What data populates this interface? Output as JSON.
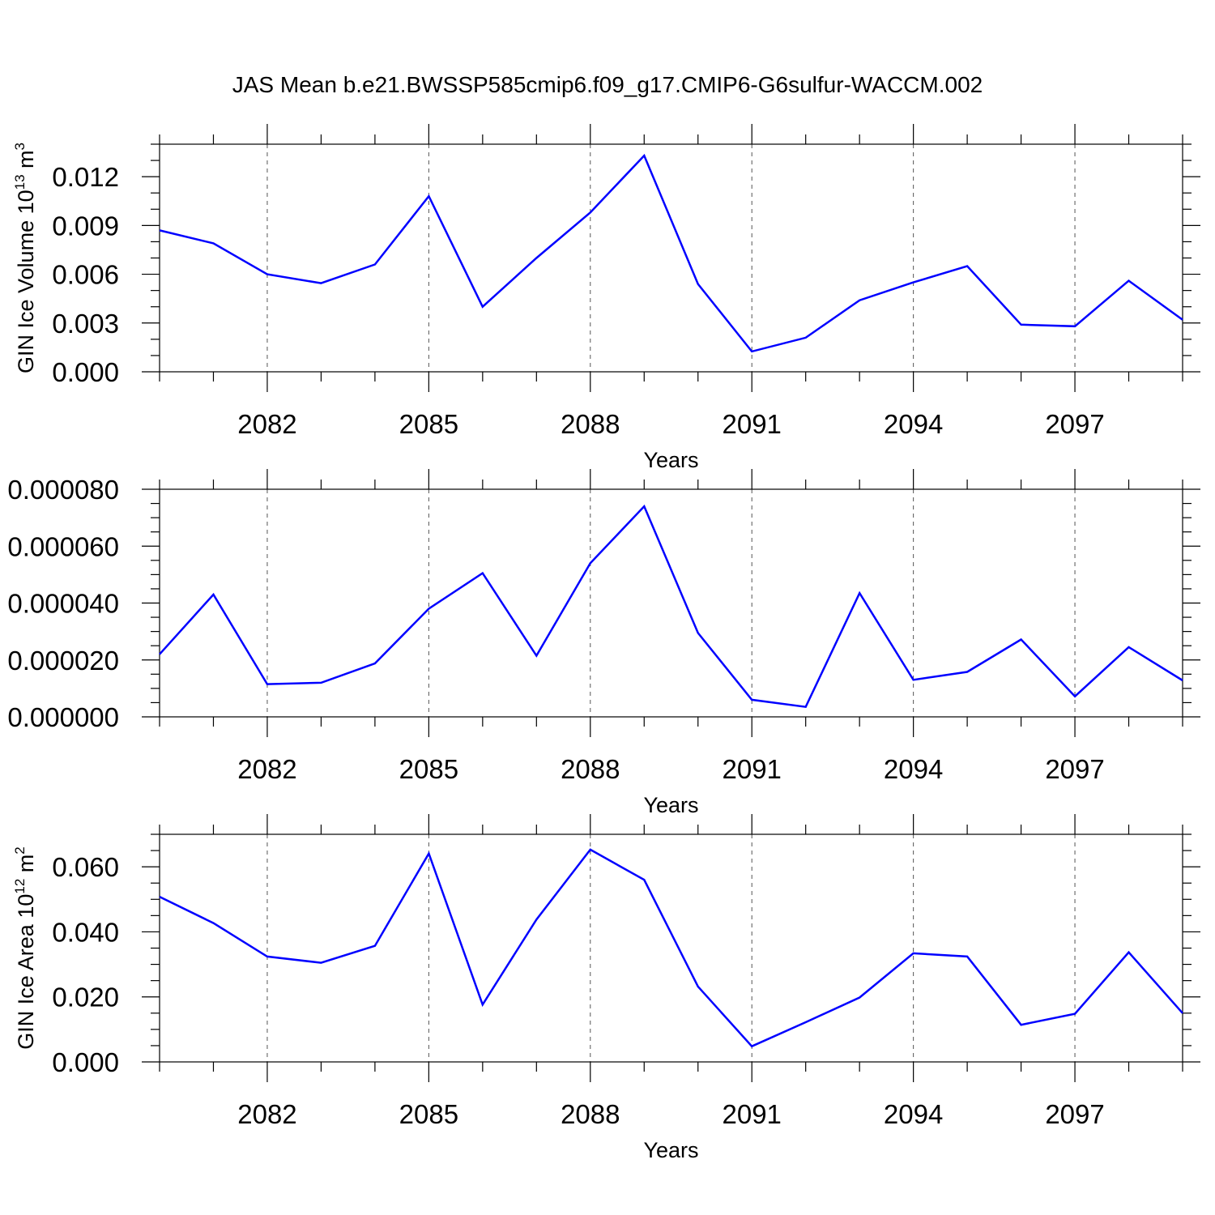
{
  "title": "JAS Mean b.e21.BWSSP585cmip6.f09_g17.CMIP6-G6sulfur-WACCM.002",
  "colors": {
    "series": "#0000ff",
    "axis": "#000000",
    "grid": "#555555"
  },
  "chart_data": [
    {
      "type": "line",
      "ylabel": {
        "main": "GIN Ice Volume 10",
        "sup": "13",
        "unit": " m",
        "unit_sup": "3"
      },
      "xlabel": "Years",
      "xlim": [
        2080,
        2099
      ],
      "ylim": [
        0,
        0.014
      ],
      "xticks": [
        2082,
        2085,
        2088,
        2091,
        2094,
        2097
      ],
      "xtick_labels": [
        "2082",
        "2085",
        "2088",
        "2091",
        "2094",
        "2097"
      ],
      "yticks": [
        0,
        0.003,
        0.006,
        0.009,
        0.012
      ],
      "ytick_labels": [
        "0.000",
        "0.003",
        "0.006",
        "0.009",
        "0.012"
      ],
      "y_minor_step": 0.001,
      "grid": "vertical dashed at major x ticks",
      "x": [
        2080,
        2081,
        2082,
        2083,
        2084,
        2085,
        2086,
        2087,
        2088,
        2089,
        2090,
        2091,
        2092,
        2093,
        2094,
        2095,
        2096,
        2097,
        2098,
        2099
      ],
      "values": [
        0.0087,
        0.0079,
        0.006,
        0.00545,
        0.0066,
        0.0108,
        0.004,
        0.007,
        0.0098,
        0.0133,
        0.0054,
        0.00125,
        0.0021,
        0.0044,
        0.0055,
        0.0065,
        0.0029,
        0.0028,
        0.0056,
        0.0032
      ]
    },
    {
      "type": "line",
      "ylabel": {
        "main": "",
        "sup": "",
        "unit": "",
        "unit_sup": ""
      },
      "xlabel": "Years",
      "xlim": [
        2080,
        2099
      ],
      "ylim": [
        0,
        8e-05
      ],
      "xticks": [
        2082,
        2085,
        2088,
        2091,
        2094,
        2097
      ],
      "xtick_labels": [
        "2082",
        "2085",
        "2088",
        "2091",
        "2094",
        "2097"
      ],
      "yticks": [
        0,
        2e-05,
        4e-05,
        6e-05,
        8e-05
      ],
      "ytick_labels": [
        "0.000000",
        "0.000020",
        "0.000040",
        "0.000060",
        "0.000080"
      ],
      "y_minor_step": 5e-06,
      "grid": "vertical dashed at major x ticks",
      "x": [
        2080,
        2081,
        2082,
        2083,
        2084,
        2085,
        2086,
        2087,
        2088,
        2089,
        2090,
        2091,
        2092,
        2093,
        2094,
        2095,
        2096,
        2097,
        2098,
        2099
      ],
      "values": [
        2.2e-05,
        4.3e-05,
        1.15e-05,
        1.2e-05,
        1.88e-05,
        3.8e-05,
        5.05e-05,
        2.15e-05,
        5.4e-05,
        7.4e-05,
        2.95e-05,
        6e-06,
        3.5e-06,
        4.35e-05,
        1.3e-05,
        1.58e-05,
        2.72e-05,
        7.2e-06,
        2.45e-05,
        1.28e-05
      ]
    },
    {
      "type": "line",
      "ylabel": {
        "main": "GIN Ice Area 10",
        "sup": "12",
        "unit": " m",
        "unit_sup": "2"
      },
      "xlabel": "Years",
      "xlim": [
        2080,
        2099
      ],
      "ylim": [
        0,
        0.07
      ],
      "xticks": [
        2082,
        2085,
        2088,
        2091,
        2094,
        2097
      ],
      "xtick_labels": [
        "2082",
        "2085",
        "2088",
        "2091",
        "2094",
        "2097"
      ],
      "yticks": [
        0,
        0.02,
        0.04,
        0.06
      ],
      "ytick_labels": [
        "0.000",
        "0.020",
        "0.040",
        "0.060"
      ],
      "y_minor_step": 0.005,
      "grid": "vertical dashed at major x ticks",
      "x": [
        2080,
        2081,
        2082,
        2083,
        2084,
        2085,
        2086,
        2087,
        2088,
        2089,
        2090,
        2091,
        2092,
        2093,
        2094,
        2095,
        2096,
        2097,
        2098,
        2099
      ],
      "values": [
        0.0508,
        0.0427,
        0.0324,
        0.0305,
        0.0357,
        0.0641,
        0.0176,
        0.0438,
        0.0653,
        0.056,
        0.0232,
        0.0048,
        0.0122,
        0.0198,
        0.0334,
        0.0324,
        0.0114,
        0.0148,
        0.0337,
        0.015
      ]
    }
  ]
}
